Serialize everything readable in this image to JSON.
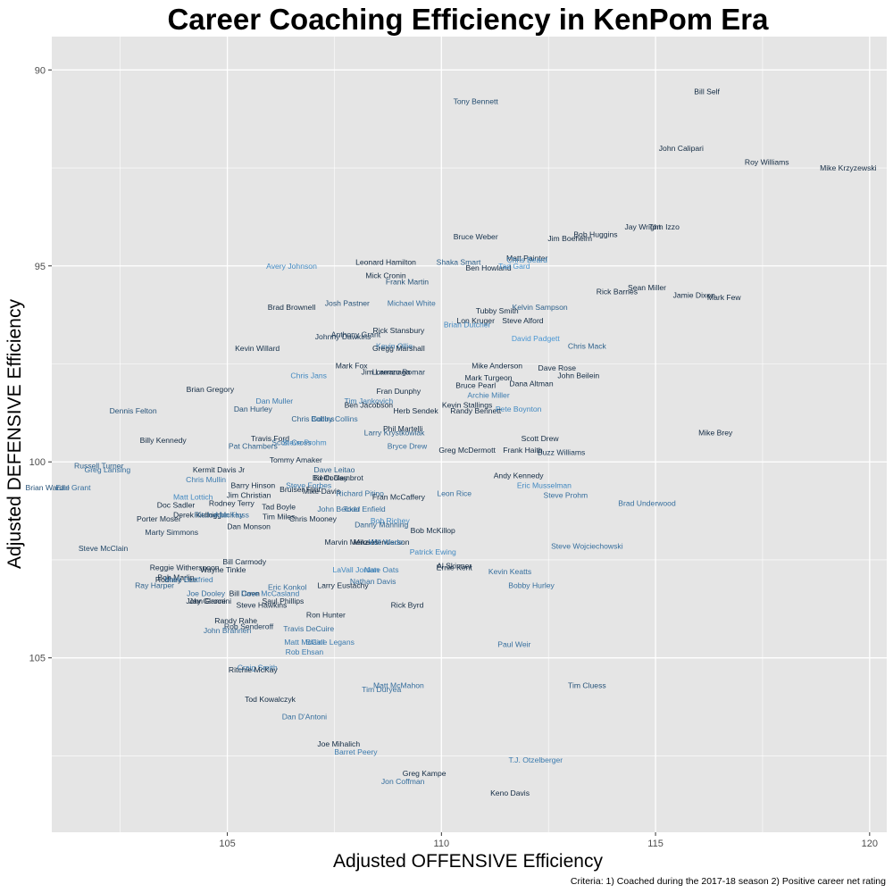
{
  "chart_data": {
    "type": "scatter",
    "title": "Career Coaching Efficiency in KenPom Era",
    "xlabel": "Adjusted OFFENSIVE Efficiency",
    "ylabel": "Adjusted DEFENSIVE Efficiency",
    "caption": "Criteria: 1) Coached during the 2017-18 season 2) Positive career net rating",
    "xlim": [
      100.9,
      120.4
    ],
    "ylim": [
      89.15,
      109.45
    ],
    "y_reversed": true,
    "x_ticks": [
      105,
      110,
      115,
      120
    ],
    "y_ticks": [
      90,
      95,
      100,
      105
    ],
    "grid": true,
    "colors": {
      "panel": "#e5e5e5",
      "grid": "#ffffff",
      "dark": "#132b43",
      "light": "#56b1f7"
    },
    "label_color_encoding": "continuous gradient from dark navy to light blue (no legend shown)",
    "points": [
      {
        "name": "Bill Self",
        "x": 116.2,
        "y": 90.55,
        "c": 0
      },
      {
        "name": "Tony Bennett",
        "x": 110.8,
        "y": 90.8,
        "c": 0.25
      },
      {
        "name": "John Calipari",
        "x": 115.6,
        "y": 92.0,
        "c": 0
      },
      {
        "name": "Roy Williams",
        "x": 117.6,
        "y": 92.35,
        "c": 0
      },
      {
        "name": "Mike Krzyzewski",
        "x": 119.5,
        "y": 92.5,
        "c": 0
      },
      {
        "name": "Jay Wright",
        "x": 114.7,
        "y": 94.0,
        "c": 0
      },
      {
        "name": "Tom Izzo",
        "x": 115.2,
        "y": 94.0,
        "c": 0
      },
      {
        "name": "Bruce Weber",
        "x": 110.8,
        "y": 94.25,
        "c": 0.05
      },
      {
        "name": "Bob Huggins",
        "x": 113.6,
        "y": 94.2,
        "c": 0
      },
      {
        "name": "Jim Boeheim",
        "x": 113.0,
        "y": 94.3,
        "c": 0
      },
      {
        "name": "Matt Painter",
        "x": 112.0,
        "y": 94.8,
        "c": 0
      },
      {
        "name": "Chris Beard",
        "x": 112.0,
        "y": 94.85,
        "c": 0.7
      },
      {
        "name": "Shaka Smart",
        "x": 110.4,
        "y": 94.9,
        "c": 0.4
      },
      {
        "name": "Leonard Hamilton",
        "x": 108.7,
        "y": 94.9,
        "c": 0
      },
      {
        "name": "Avery Johnson",
        "x": 106.5,
        "y": 95.0,
        "c": 0.7
      },
      {
        "name": "Ben Howland",
        "x": 111.1,
        "y": 95.05,
        "c": 0
      },
      {
        "name": "Tad Gard",
        "x": 111.7,
        "y": 95.0,
        "c": 0.8
      },
      {
        "name": "Mick Cronin",
        "x": 108.7,
        "y": 95.25,
        "c": 0
      },
      {
        "name": "Frank Martin",
        "x": 109.2,
        "y": 95.4,
        "c": 0.3
      },
      {
        "name": "Sean Miller",
        "x": 114.8,
        "y": 95.55,
        "c": 0
      },
      {
        "name": "Rick Barnes",
        "x": 114.1,
        "y": 95.65,
        "c": 0
      },
      {
        "name": "Jamie Dixon",
        "x": 115.9,
        "y": 95.75,
        "c": 0
      },
      {
        "name": "Mark Few",
        "x": 116.6,
        "y": 95.8,
        "c": 0
      },
      {
        "name": "Brad Brownell",
        "x": 106.5,
        "y": 96.05,
        "c": 0
      },
      {
        "name": "Josh Pastner",
        "x": 107.8,
        "y": 95.95,
        "c": 0.3
      },
      {
        "name": "Michael White",
        "x": 109.3,
        "y": 95.95,
        "c": 0.5
      },
      {
        "name": "Kelvin Sampson",
        "x": 112.3,
        "y": 96.05,
        "c": 0.4
      },
      {
        "name": "Tubby Smith",
        "x": 111.3,
        "y": 96.15,
        "c": 0
      },
      {
        "name": "Lon Kruger",
        "x": 110.8,
        "y": 96.4,
        "c": 0
      },
      {
        "name": "Steve Alford",
        "x": 111.9,
        "y": 96.4,
        "c": 0
      },
      {
        "name": "Brian Dutcher",
        "x": 110.6,
        "y": 96.5,
        "c": 0.7
      },
      {
        "name": "Rick Stansbury",
        "x": 109.0,
        "y": 96.65,
        "c": 0
      },
      {
        "name": "Anthony Grant",
        "x": 108.0,
        "y": 96.75,
        "c": 0.1
      },
      {
        "name": "Johnny Dawkins",
        "x": 107.7,
        "y": 96.8,
        "c": 0.1
      },
      {
        "name": "David Padgett",
        "x": 112.2,
        "y": 96.85,
        "c": 0.8
      },
      {
        "name": "Chris Mack",
        "x": 113.4,
        "y": 97.05,
        "c": 0.4
      },
      {
        "name": "Kevin Willard",
        "x": 105.7,
        "y": 97.1,
        "c": 0.05
      },
      {
        "name": "Kevin Ollie",
        "x": 108.9,
        "y": 97.05,
        "c": 0.6
      },
      {
        "name": "Gregg Marshall",
        "x": 109.0,
        "y": 97.1,
        "c": 0
      },
      {
        "name": "Mark Fox",
        "x": 107.9,
        "y": 97.55,
        "c": 0
      },
      {
        "name": "Mike Anderson",
        "x": 111.3,
        "y": 97.55,
        "c": 0
      },
      {
        "name": "Dave Rose",
        "x": 112.7,
        "y": 97.6,
        "c": 0
      },
      {
        "name": "Jim Larranaga",
        "x": 108.7,
        "y": 97.7,
        "c": 0
      },
      {
        "name": "Lorenzo Romar",
        "x": 109.0,
        "y": 97.7,
        "c": 0.1
      },
      {
        "name": "Chris Jans",
        "x": 106.9,
        "y": 97.8,
        "c": 0.7
      },
      {
        "name": "John Beilein",
        "x": 113.2,
        "y": 97.8,
        "c": 0
      },
      {
        "name": "Mark Turgeon",
        "x": 111.1,
        "y": 97.85,
        "c": 0
      },
      {
        "name": "Dana Altman",
        "x": 112.1,
        "y": 98.0,
        "c": 0
      },
      {
        "name": "Bruce Pearl",
        "x": 110.8,
        "y": 98.05,
        "c": 0
      },
      {
        "name": "Brian Gregory",
        "x": 104.6,
        "y": 98.15,
        "c": 0
      },
      {
        "name": "Fran Dunphy",
        "x": 109.0,
        "y": 98.2,
        "c": 0
      },
      {
        "name": "Archie Miller",
        "x": 111.1,
        "y": 98.3,
        "c": 0.6
      },
      {
        "name": "Dan Muller",
        "x": 106.1,
        "y": 98.45,
        "c": 0.6
      },
      {
        "name": "Tim Jankovich",
        "x": 108.3,
        "y": 98.45,
        "c": 0.6
      },
      {
        "name": "Ben Jacobson",
        "x": 108.3,
        "y": 98.55,
        "c": 0
      },
      {
        "name": "Kevin Stallings",
        "x": 110.6,
        "y": 98.55,
        "c": 0
      },
      {
        "name": "Dennis Felton",
        "x": 102.8,
        "y": 98.7,
        "c": 0.3
      },
      {
        "name": "Dan Hurley",
        "x": 105.6,
        "y": 98.65,
        "c": 0.3
      },
      {
        "name": "Herb Sendek",
        "x": 109.4,
        "y": 98.7,
        "c": 0
      },
      {
        "name": "Randy Bennett",
        "x": 110.8,
        "y": 98.7,
        "c": 0
      },
      {
        "name": "Pete Boynton",
        "x": 111.8,
        "y": 98.65,
        "c": 0.7
      },
      {
        "name": "Chris Collins",
        "x": 107.0,
        "y": 98.9,
        "c": 0.4
      },
      {
        "name": "Bobby Collins",
        "x": 107.5,
        "y": 98.9,
        "c": 0.5
      },
      {
        "name": "Phil Martelli",
        "x": 109.1,
        "y": 99.15,
        "c": 0
      },
      {
        "name": "Larry Krystkowiak",
        "x": 108.9,
        "y": 99.25,
        "c": 0.4
      },
      {
        "name": "Mike Brey",
        "x": 116.4,
        "y": 99.25,
        "c": 0
      },
      {
        "name": "Scott Drew",
        "x": 112.3,
        "y": 99.4,
        "c": 0
      },
      {
        "name": "Billy Kennedy",
        "x": 103.5,
        "y": 99.45,
        "c": 0
      },
      {
        "name": "Travis Ford",
        "x": 106.0,
        "y": 99.4,
        "c": 0
      },
      {
        "name": "Scott Cross",
        "x": 106.5,
        "y": 99.5,
        "c": 0.5
      },
      {
        "name": "Steve Prohm",
        "x": 106.8,
        "y": 99.5,
        "c": 0.7
      },
      {
        "name": "Pat Chambers",
        "x": 105.6,
        "y": 99.6,
        "c": 0.4
      },
      {
        "name": "Bryce Drew",
        "x": 109.2,
        "y": 99.6,
        "c": 0.5
      },
      {
        "name": "Greg McDermott",
        "x": 110.6,
        "y": 99.7,
        "c": 0
      },
      {
        "name": "Frank Haith",
        "x": 111.9,
        "y": 99.7,
        "c": 0
      },
      {
        "name": "Buzz Williams",
        "x": 112.8,
        "y": 99.75,
        "c": 0.1
      },
      {
        "name": "Tommy Amaker",
        "x": 106.6,
        "y": 99.95,
        "c": 0
      },
      {
        "name": "Russell Turner",
        "x": 102.0,
        "y": 100.1,
        "c": 0.4
      },
      {
        "name": "Greg Lansing",
        "x": 102.2,
        "y": 100.2,
        "c": 0.5
      },
      {
        "name": "Kermit Davis Jr",
        "x": 104.8,
        "y": 100.2,
        "c": 0
      },
      {
        "name": "Dave Leitao",
        "x": 107.5,
        "y": 100.2,
        "c": 0.4
      },
      {
        "name": "Chris Mullin",
        "x": 104.5,
        "y": 100.45,
        "c": 0.6
      },
      {
        "name": "Ed Cooley",
        "x": 107.4,
        "y": 100.4,
        "c": 0
      },
      {
        "name": "Keith Dambrot",
        "x": 107.6,
        "y": 100.4,
        "c": 0
      },
      {
        "name": "Andy Kennedy",
        "x": 111.8,
        "y": 100.35,
        "c": 0
      },
      {
        "name": "Steve Forbes",
        "x": 106.9,
        "y": 100.6,
        "c": 0.6
      },
      {
        "name": "Barry Hinson",
        "x": 105.6,
        "y": 100.6,
        "c": 0
      },
      {
        "name": "Eric Musselman",
        "x": 112.4,
        "y": 100.6,
        "c": 0.7
      },
      {
        "name": "Bruiser Flint",
        "x": 106.7,
        "y": 100.7,
        "c": 0
      },
      {
        "name": "Mike Davis",
        "x": 107.2,
        "y": 100.75,
        "c": 0
      },
      {
        "name": "Richard Pitino",
        "x": 108.1,
        "y": 100.8,
        "c": 0.5
      },
      {
        "name": "Leon Rice",
        "x": 110.3,
        "y": 100.8,
        "c": 0.5
      },
      {
        "name": "Brian Wardle",
        "x": 100.8,
        "y": 100.65,
        "c": 0.3
      },
      {
        "name": "Earl Grant",
        "x": 101.4,
        "y": 100.65,
        "c": 0.5
      },
      {
        "name": "Jim Christian",
        "x": 105.5,
        "y": 100.85,
        "c": 0
      },
      {
        "name": "Fran McCaffery",
        "x": 109.0,
        "y": 100.9,
        "c": 0
      },
      {
        "name": "Matt Lottich",
        "x": 104.2,
        "y": 100.9,
        "c": 0.7
      },
      {
        "name": "Steve Prohm",
        "x": 112.9,
        "y": 100.85,
        "c": 0.5
      },
      {
        "name": "Brad Underwood",
        "x": 114.8,
        "y": 101.05,
        "c": 0.5
      },
      {
        "name": "Rodney Terry",
        "x": 105.1,
        "y": 101.05,
        "c": 0
      },
      {
        "name": "Doc Sadler",
        "x": 103.8,
        "y": 101.1,
        "c": 0
      },
      {
        "name": "Tad Boyle",
        "x": 106.2,
        "y": 101.15,
        "c": 0
      },
      {
        "name": "John Becker",
        "x": 107.6,
        "y": 101.2,
        "c": 0.5
      },
      {
        "name": "Todd Enfield",
        "x": 108.2,
        "y": 101.2,
        "c": 0.5
      },
      {
        "name": "Derek Kellogg",
        "x": 104.3,
        "y": 101.35,
        "c": 0
      },
      {
        "name": "Ritchie McKay",
        "x": 104.8,
        "y": 101.35,
        "c": 0.4
      },
      {
        "name": "Alan Huss",
        "x": 105.1,
        "y": 101.35,
        "c": 0.5
      },
      {
        "name": "Tim Miles",
        "x": 106.2,
        "y": 101.4,
        "c": 0
      },
      {
        "name": "Chris Mooney",
        "x": 107.0,
        "y": 101.45,
        "c": 0
      },
      {
        "name": "Porter Moser",
        "x": 103.4,
        "y": 101.45,
        "c": 0
      },
      {
        "name": "Bob Richey",
        "x": 108.8,
        "y": 101.5,
        "c": 0.7
      },
      {
        "name": "Danny Manning",
        "x": 108.6,
        "y": 101.6,
        "c": 0.4
      },
      {
        "name": "Dan Monson",
        "x": 105.5,
        "y": 101.65,
        "c": 0
      },
      {
        "name": "Bob McKillop",
        "x": 109.8,
        "y": 101.75,
        "c": 0
      },
      {
        "name": "Marty Simmons",
        "x": 103.7,
        "y": 101.8,
        "c": 0.1
      },
      {
        "name": "Marvin Menzies",
        "x": 107.9,
        "y": 102.05,
        "c": 0
      },
      {
        "name": "Mike Henderson",
        "x": 108.6,
        "y": 102.05,
        "c": 0
      },
      {
        "name": "Will Wade",
        "x": 108.7,
        "y": 102.05,
        "c": 0.6
      },
      {
        "name": "Steve McClain",
        "x": 102.1,
        "y": 102.2,
        "c": 0.2
      },
      {
        "name": "Steve Wojciechowski",
        "x": 113.4,
        "y": 102.15,
        "c": 0.5
      },
      {
        "name": "Patrick Ewing",
        "x": 109.8,
        "y": 102.3,
        "c": 0.7
      },
      {
        "name": "Bill Carmody",
        "x": 105.4,
        "y": 102.55,
        "c": 0
      },
      {
        "name": "Reggie Witherspoon",
        "x": 104.0,
        "y": 102.7,
        "c": 0
      },
      {
        "name": "Wayne Tinkle",
        "x": 104.9,
        "y": 102.75,
        "c": 0
      },
      {
        "name": "Al Skinner",
        "x": 110.3,
        "y": 102.65,
        "c": 0
      },
      {
        "name": "Ernie Kent",
        "x": 110.3,
        "y": 102.7,
        "c": 0
      },
      {
        "name": "LaVall Jordan",
        "x": 108.0,
        "y": 102.75,
        "c": 0.7
      },
      {
        "name": "Nate Oats",
        "x": 108.6,
        "y": 102.75,
        "c": 0.6
      },
      {
        "name": "Kevin Keatts",
        "x": 111.6,
        "y": 102.8,
        "c": 0.5
      },
      {
        "name": "Bob Marlin",
        "x": 103.8,
        "y": 102.95,
        "c": 0
      },
      {
        "name": "Rodney Lee",
        "x": 103.8,
        "y": 103.0,
        "c": 0
      },
      {
        "name": "Mark Gottfried",
        "x": 104.1,
        "y": 103.0,
        "c": 0.6
      },
      {
        "name": "Nathan Davis",
        "x": 108.4,
        "y": 103.05,
        "c": 0.5
      },
      {
        "name": "Ray Harper",
        "x": 103.3,
        "y": 103.15,
        "c": 0.4
      },
      {
        "name": "Larry Eustachy",
        "x": 107.7,
        "y": 103.15,
        "c": 0
      },
      {
        "name": "Eric Konkol",
        "x": 106.4,
        "y": 103.2,
        "c": 0.5
      },
      {
        "name": "Bobby Hurley",
        "x": 112.1,
        "y": 103.15,
        "c": 0.5
      },
      {
        "name": "Joe Dooley",
        "x": 104.5,
        "y": 103.35,
        "c": 0.5
      },
      {
        "name": "Bill Coen",
        "x": 105.4,
        "y": 103.35,
        "c": 0
      },
      {
        "name": "Dave McCasland",
        "x": 106.0,
        "y": 103.35,
        "c": 0.6
      },
      {
        "name": "John Groce",
        "x": 104.5,
        "y": 103.55,
        "c": 0
      },
      {
        "name": "Jay Giannini",
        "x": 104.6,
        "y": 103.55,
        "c": 0
      },
      {
        "name": "Saul Phillips",
        "x": 106.3,
        "y": 103.55,
        "c": 0
      },
      {
        "name": "Steve Hawkins",
        "x": 105.8,
        "y": 103.65,
        "c": 0
      },
      {
        "name": "Rick Byrd",
        "x": 109.2,
        "y": 103.65,
        "c": 0
      },
      {
        "name": "Ron Hunter",
        "x": 107.3,
        "y": 103.9,
        "c": 0
      },
      {
        "name": "Randy Rahe",
        "x": 105.2,
        "y": 104.05,
        "c": 0
      },
      {
        "name": "Rob Senderoff",
        "x": 105.5,
        "y": 104.2,
        "c": 0.1
      },
      {
        "name": "John Brannen",
        "x": 105.0,
        "y": 104.3,
        "c": 0.5
      },
      {
        "name": "Travis DeCuire",
        "x": 106.9,
        "y": 104.25,
        "c": 0.5
      },
      {
        "name": "Matt McCall",
        "x": 106.8,
        "y": 104.6,
        "c": 0.6
      },
      {
        "name": "Blaine Legans",
        "x": 107.4,
        "y": 104.6,
        "c": 0.6
      },
      {
        "name": "Paul Weir",
        "x": 111.7,
        "y": 104.65,
        "c": 0.5
      },
      {
        "name": "Rob Ehsan",
        "x": 106.8,
        "y": 104.85,
        "c": 0.6
      },
      {
        "name": "Craig Smith",
        "x": 105.7,
        "y": 105.25,
        "c": 0.6
      },
      {
        "name": "Ritchie McKay",
        "x": 105.6,
        "y": 105.3,
        "c": 0
      },
      {
        "name": "Matt McMahon",
        "x": 109.0,
        "y": 105.7,
        "c": 0.5
      },
      {
        "name": "Tim Duryea",
        "x": 108.6,
        "y": 105.8,
        "c": 0.5
      },
      {
        "name": "Tim Cluess",
        "x": 113.4,
        "y": 105.7,
        "c": 0.3
      },
      {
        "name": "Tod Kowalczyk",
        "x": 106.0,
        "y": 106.05,
        "c": 0
      },
      {
        "name": "Dan D'Antoni",
        "x": 106.8,
        "y": 106.5,
        "c": 0.5
      },
      {
        "name": "Joe Mihalich",
        "x": 107.6,
        "y": 107.2,
        "c": 0
      },
      {
        "name": "Barret Peery",
        "x": 108.0,
        "y": 107.4,
        "c": 0.6
      },
      {
        "name": "T.J. Otzelberger",
        "x": 112.2,
        "y": 107.6,
        "c": 0.6
      },
      {
        "name": "Greg Kampe",
        "x": 109.6,
        "y": 107.95,
        "c": 0
      },
      {
        "name": "Jon Coffman",
        "x": 109.1,
        "y": 108.15,
        "c": 0.5
      },
      {
        "name": "Keno Davis",
        "x": 111.6,
        "y": 108.45,
        "c": 0
      }
    ]
  }
}
